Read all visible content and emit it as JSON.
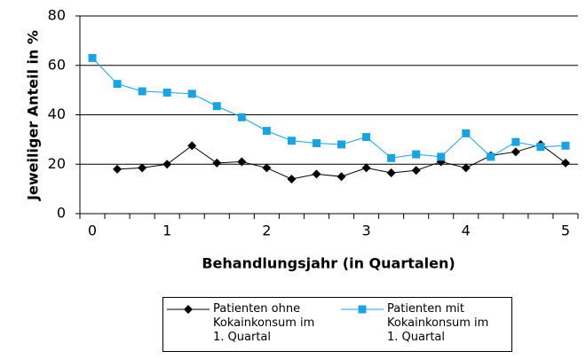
{
  "chart_data": {
    "type": "line",
    "y_label": "Jeweiliger Anteil in %",
    "x_label": "Behandlungsjahr (in Quartalen)",
    "categories": [
      "0",
      null,
      null,
      "1",
      null,
      null,
      null,
      "2",
      null,
      null,
      null,
      "3",
      null,
      null,
      null,
      "4",
      null,
      null,
      null,
      "5"
    ],
    "series": [
      {
        "name": "Patienten ohne Kokainkonsum im 1. Quartal",
        "color": "#000000",
        "marker": "diamond",
        "values": [
          null,
          18,
          18.5,
          20,
          27.5,
          20.5,
          21,
          18.5,
          14,
          16,
          15,
          18.5,
          16.5,
          17.5,
          21,
          18.5,
          23.5,
          25,
          28,
          20.5
        ]
      },
      {
        "name": "Patienten mit Kokainkonsum im 1. Quartal",
        "color": "#1aa3e0",
        "marker": "square",
        "values": [
          63,
          52.5,
          49.5,
          49,
          48.5,
          43.5,
          39,
          33.5,
          29.5,
          28.5,
          28,
          31,
          22.5,
          24,
          23,
          32.5,
          23,
          29,
          27,
          27.5
        ]
      }
    ],
    "ylim": [
      0,
      80
    ],
    "yticks": [
      0,
      20,
      40,
      60,
      80
    ],
    "grid": true
  }
}
